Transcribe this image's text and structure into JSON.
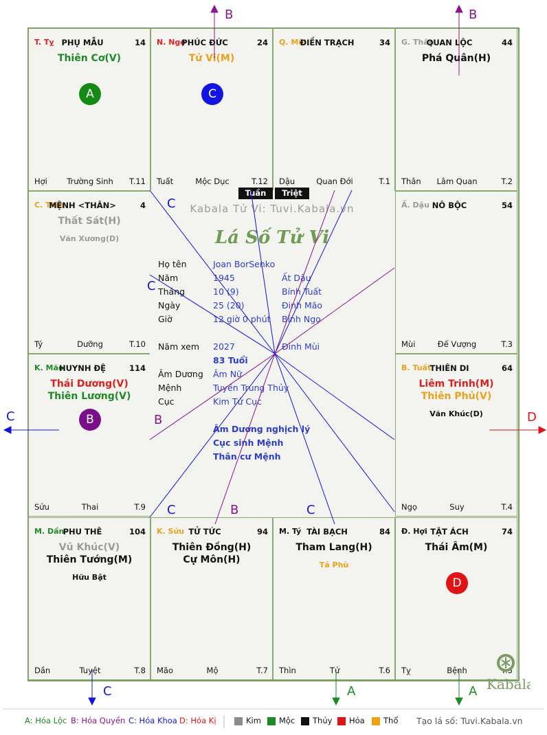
{
  "cells": [
    {
      "branch": "T. Tỵ",
      "branch_color": "#d22",
      "house": "PHỤ MẪU",
      "num": "14",
      "stars": [
        {
          "t": "Thiên Cơ(V)",
          "c": "#1e8a26"
        }
      ],
      "minor": "",
      "bl": "Hợi",
      "bc": "Trường Sinh",
      "br": "T.11",
      "badge": {
        "t": "A",
        "c": "#138a13"
      }
    },
    {
      "branch": "N. Ngọ",
      "branch_color": "#d22",
      "house": "PHÚC ĐỨC",
      "num": "24",
      "stars": [
        {
          "t": "Tử Vi(M)",
          "c": "#e8a21c"
        }
      ],
      "minor": "",
      "bl": "Tuất",
      "bc": "Mộc Dục",
      "br": "T.12",
      "badge": {
        "t": "C",
        "c": "#1414e0"
      }
    },
    {
      "branch": "Q. Mùi",
      "branch_color": "#e8a21c",
      "house": "ĐIỀN TRẠCH",
      "num": "34",
      "stars": [],
      "minor": "",
      "bl": "Dậu",
      "bc": "Quan Đới",
      "br": "T.1",
      "badge": null
    },
    {
      "branch": "G. Thân",
      "branch_color": "#9a9a9a",
      "house": "QUAN LỘC",
      "num": "44",
      "stars": [
        {
          "t": "Phá Quân(H)",
          "c": "#111"
        }
      ],
      "minor": "",
      "bl": "Thân",
      "bc": "Lâm Quan",
      "br": "T.2",
      "badge": null
    },
    {
      "branch": "C. Thìn",
      "branch_color": "#e8a21c",
      "house": "MỆNH <THÂN>",
      "num": "4",
      "stars": [
        {
          "t": "Thất Sát(H)",
          "c": "#9a9a9a"
        }
      ],
      "minor": "Văn Xương(D)",
      "minor_color": "#9a9a9a",
      "bl": "Tý",
      "bc": "Dưỡng",
      "br": "T.10",
      "badge": null
    },
    {
      "branch": "Ấ. Dậu",
      "branch_color": "#9a9a9a",
      "house": "NÔ BỘC",
      "num": "54",
      "stars": [],
      "minor": "",
      "bl": "Mùi",
      "bc": "Đế Vượng",
      "br": "T.3",
      "badge": null
    },
    {
      "branch": "K. Mão",
      "branch_color": "#1e8a26",
      "house": "HUYNH ĐỆ",
      "num": "114",
      "stars": [
        {
          "t": "Thái Dương(V)",
          "c": "#dd1f1f"
        },
        {
          "t": "Thiên Lương(V)",
          "c": "#1e8a26"
        }
      ],
      "minor": "",
      "bl": "Sửu",
      "bc": "Thai",
      "br": "T.9",
      "badge": {
        "t": "B",
        "c": "#7a0f8a"
      }
    },
    {
      "branch": "B. Tuất",
      "branch_color": "#e8a21c",
      "house": "THIÊN DI",
      "num": "64",
      "stars": [
        {
          "t": "Liêm Trinh(M)",
          "c": "#dd1f1f"
        },
        {
          "t": "Thiên Phủ(V)",
          "c": "#e8a21c"
        }
      ],
      "minor": "Văn Khúc(D)",
      "minor_color": "#111",
      "bl": "Ngọ",
      "bc": "Suy",
      "br": "T.4",
      "badge": null
    },
    {
      "branch": "M. Dần",
      "branch_color": "#1e8a26",
      "house": "PHU THÊ",
      "num": "104",
      "stars": [
        {
          "t": "Vũ Khúc(V)",
          "c": "#9a9a9a"
        },
        {
          "t": "Thiên Tướng(M)",
          "c": "#111"
        }
      ],
      "minor": "Hữu Bật",
      "minor_color": "#111",
      "bl": "Dần",
      "bc": "Tuyệt",
      "br": "T.8",
      "badge": null
    },
    {
      "branch": "K. Sửu",
      "branch_color": "#e8a21c",
      "house": "TỬ TỨC",
      "num": "94",
      "stars": [
        {
          "t": "Thiên Đồng(H)",
          "c": "#111"
        },
        {
          "t": "Cự Môn(H)",
          "c": "#111"
        }
      ],
      "minor": "",
      "bl": "Mão",
      "bc": "Mộ",
      "br": "T.7",
      "badge": null
    },
    {
      "branch": "M. Tý",
      "branch_color": "#111",
      "house": "TÀI BẠCH",
      "num": "84",
      "stars": [
        {
          "t": "Tham Lang(H)",
          "c": "#111"
        }
      ],
      "minor": "Tả Phù",
      "minor_color": "#e8a21c",
      "bl": "Thìn",
      "bc": "Tử",
      "br": "T.6",
      "badge": null
    },
    {
      "branch": "Đ. Hợi",
      "branch_color": "#111",
      "house": "TẬT ÁCH",
      "num": "74",
      "stars": [
        {
          "t": "Thái Âm(M)",
          "c": "#111"
        }
      ],
      "minor": "",
      "bl": "Tỵ",
      "bc": "Bệnh",
      "br": "T.5",
      "badge": {
        "t": "D",
        "c": "#e01414"
      }
    }
  ],
  "center": {
    "watermark": "Kabala Tử Vi: Tuvi.Kabala.vn",
    "title": "Lá Số Tử Vi",
    "rows": [
      {
        "l": "Họ tên",
        "v1": "Joan BorSenko",
        "v2": ""
      },
      {
        "l": "Năm",
        "v1": "1945",
        "v2": "Ất Dậu"
      },
      {
        "l": "Tháng",
        "v1": "10 (9)",
        "v2": "Bính Tuất"
      },
      {
        "l": "Ngày",
        "v1": "25  (20)",
        "v2": "Đinh Mão"
      },
      {
        "l": "Giờ",
        "v1": "12 giờ 0 phút",
        "v2": "Bính Ngọ"
      },
      {
        "l": "Năm xem",
        "v1": "2027",
        "v2": "Đinh Mùi"
      },
      {
        "l": "",
        "v1": "83 Tuổi",
        "v2": ""
      },
      {
        "l": "Âm Dương",
        "v1": "Âm Nữ",
        "v2": ""
      },
      {
        "l": "Mệnh",
        "v1": "Tuyền Trung Thủy",
        "v2": ""
      },
      {
        "l": "Cục",
        "v1": "Kim Tứ Cục",
        "v2": ""
      }
    ],
    "notes": [
      "Âm Dương nghịch lý",
      "Cục sinh Mệnh",
      "Thân cư Mệnh"
    ],
    "logo_text": "Kabala"
  },
  "tags": {
    "tuan": "Tuần",
    "triet": "Triệt"
  },
  "arrows": {
    "top_b1": "B",
    "top_b2": "B",
    "left_c": "C",
    "right_d": "D",
    "bottom_c": "C",
    "bottom_a1": "A",
    "bottom_a2": "A",
    "in_c1": "C",
    "in_c2": "C",
    "in_b1": "B",
    "in_c3": "C",
    "in_b2": "B",
    "in_c4": "C"
  },
  "legend": {
    "a": "A: Hóa Lộc",
    "b": "B: Hóa Quyền",
    "c": "C: Hóa Khoa",
    "d": "D: Hóa Kị",
    "elements": [
      {
        "t": "Kim",
        "c": "#8c8c8c"
      },
      {
        "t": "Mộc",
        "c": "#1e8a26"
      },
      {
        "t": "Thủy",
        "c": "#111111"
      },
      {
        "t": "Hỏa",
        "c": "#e01414"
      },
      {
        "t": "Thổ",
        "c": "#f0a010"
      }
    ],
    "credit": "Tạo lá số: Tuvi.Kabala.vn"
  }
}
